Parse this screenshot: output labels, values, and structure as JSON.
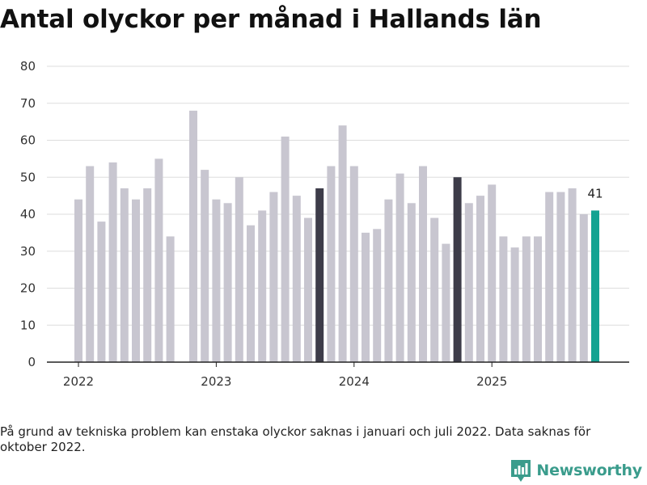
{
  "title": "Antal olyckor per månad i Hallands län",
  "note": "På grund av tekniska problem kan enstaka olyckor saknas i januari och juli 2022. Data saknas för oktober 2022.",
  "brand": {
    "name": "Newsworthy",
    "icon": "newsworthy-logo-icon"
  },
  "colors": {
    "default_bar": "#c8c6d0",
    "highlight_bar": "#3d3c49",
    "latest_bar": "#14a392",
    "grid": "#dddddd",
    "axis": "#222222",
    "brand": "#3a9c8c"
  },
  "chart_data": {
    "type": "bar",
    "ylim": [
      0,
      80
    ],
    "yticks": [
      0,
      10,
      20,
      30,
      40,
      50,
      60,
      70,
      80
    ],
    "grid": true,
    "xticks": [
      "2022",
      "2023",
      "2024",
      "2025"
    ],
    "series": [
      {
        "x": [
          "2022-01",
          "2022-02",
          "2022-03",
          "2022-04",
          "2022-05",
          "2022-06",
          "2022-07",
          "2022-08",
          "2022-09",
          "2022-10",
          "2022-11",
          "2022-12",
          "2023-01",
          "2023-02",
          "2023-03",
          "2023-04",
          "2023-05",
          "2023-06",
          "2023-07",
          "2023-08",
          "2023-09",
          "2023-10",
          "2023-11",
          "2023-12",
          "2024-01",
          "2024-02",
          "2024-03",
          "2024-04",
          "2024-05",
          "2024-06",
          "2024-07",
          "2024-08",
          "2024-09",
          "2024-10",
          "2024-11",
          "2024-12",
          "2025-01",
          "2025-02",
          "2025-03",
          "2025-04",
          "2025-05",
          "2025-06",
          "2025-07",
          "2025-08",
          "2025-09",
          "2025-10"
        ],
        "values": [
          44,
          53,
          38,
          54,
          47,
          44,
          47,
          55,
          34,
          null,
          68,
          52,
          44,
          43,
          50,
          37,
          41,
          46,
          61,
          45,
          39,
          47,
          53,
          64,
          53,
          35,
          36,
          44,
          51,
          43,
          53,
          39,
          32,
          50,
          43,
          45,
          48,
          34,
          31,
          34,
          34,
          46,
          46,
          47,
          40,
          41
        ]
      }
    ],
    "highlighted": [
      "2023-10",
      "2024-10"
    ],
    "latest": "2025-10",
    "annotations": [
      {
        "x": "2025-10",
        "text": "41"
      }
    ]
  }
}
